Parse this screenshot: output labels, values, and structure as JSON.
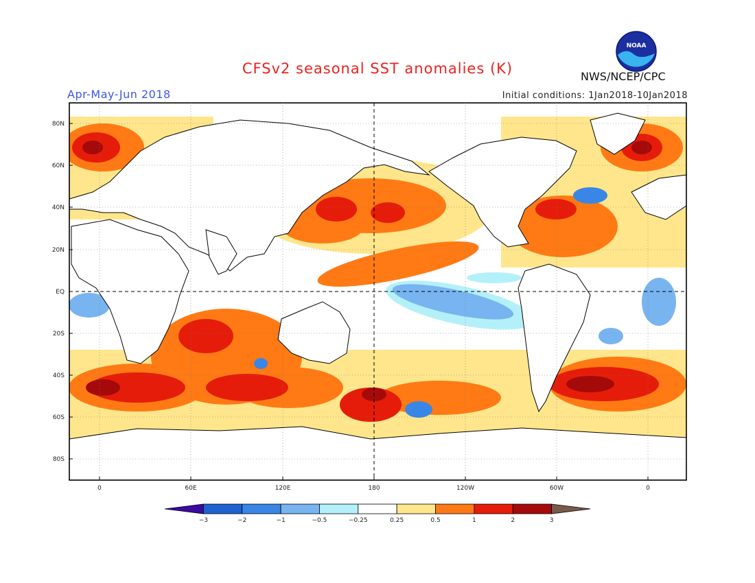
{
  "title": "CFSv2 seasonal SST anomalies (K)",
  "period": "Apr-May-Jun 2018",
  "initial_conditions": "Initial conditions: 1Jan2018-10Jan2018",
  "agency": "NWS/NCEP/CPC",
  "logo_text": "NOAA",
  "lat_labels": [
    "80N",
    "60N",
    "40N",
    "20N",
    "EQ",
    "20S",
    "40S",
    "60S",
    "80S"
  ],
  "lon_labels": [
    "0",
    "60E",
    "120E",
    "180",
    "120W",
    "60W",
    "0"
  ],
  "colorbar": {
    "labels": [
      "-3",
      "-2",
      "-1",
      "-0.5",
      "-0.25",
      "0.25",
      "0.5",
      "1",
      "2",
      "3"
    ],
    "colors": [
      "#3c0aa0",
      "#1e62d2",
      "#3a86e6",
      "#78b4f0",
      "#b4f0fa",
      "#ffffff",
      "#ffe68c",
      "#ff7a14",
      "#e61c0a",
      "#a50a0a",
      "#7a5a4a"
    ]
  },
  "colors": {
    "title": "#e8231e",
    "period": "#3a57e8",
    "land": "#ffffff",
    "coast": "#000000"
  }
}
